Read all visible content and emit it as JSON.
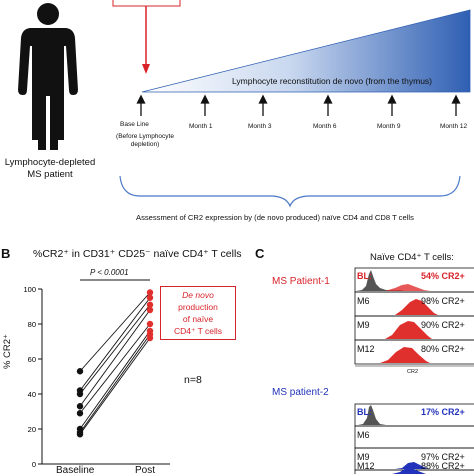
{
  "panelA": {
    "patient_label": "Lymphocyte-depleted MS patient",
    "patient_line1": "Lymphocyte-depleted",
    "patient_line2": "MS patient",
    "wedge_label": "Lymphocyte reconstitution de novo (from the thymus)",
    "timepoints": [
      {
        "label": "Base Line"
      },
      {
        "label": "Month 1"
      },
      {
        "label": "Month 3"
      },
      {
        "label": "Month 6"
      },
      {
        "label": "Month 9"
      },
      {
        "label": "Month 12"
      }
    ],
    "baseline_note_line1": "(Before Lymphocyte",
    "baseline_note_line2": "depletion)",
    "assessment": "Assessment of CR2 expression by (de novo produced) naïve CD4 and CD8 T cells",
    "colors": {
      "arrow_red": "#d8232a",
      "wedge_blue": "#2f5fb3"
    }
  },
  "panelB": {
    "letter": "B",
    "title": "%CR2⁺ in CD31⁺ CD25⁻ naïve CD4⁺ T cells",
    "pvalue": "P < 0.0001",
    "ylabel": "% CR2⁺",
    "n_label": "n=8",
    "callout_lines": [
      "De novo",
      "production",
      "of naïve",
      "CD4⁺ T cells"
    ],
    "xticks": [
      "Baseline",
      "Post"
    ],
    "yticks": [
      "0",
      "20",
      "40",
      "60",
      "80",
      "100"
    ],
    "colors": {
      "baseline_dot": "#111111",
      "post_dot": "#e0302e",
      "callout": "#d8232a"
    }
  },
  "chart_data": {
    "type": "scatter",
    "categories": [
      "Baseline",
      "Post"
    ],
    "ylim": [
      0,
      100
    ],
    "pairs": [
      {
        "baseline": 53,
        "post": 98
      },
      {
        "baseline": 42,
        "post": 95
      },
      {
        "baseline": 40,
        "post": 91
      },
      {
        "baseline": 33,
        "post": 88
      },
      {
        "baseline": 29,
        "post": 80
      },
      {
        "baseline": 20,
        "post": 76
      },
      {
        "baseline": 18,
        "post": 74
      },
      {
        "baseline": 17,
        "post": 72
      }
    ]
  },
  "panelC": {
    "letter": "C",
    "title": "Naïve CD4⁺ T cells:",
    "axis_label": "CR2",
    "patient1": {
      "name": "MS Patient-1",
      "color": "#d8232a",
      "rows": [
        {
          "tp": "BL:",
          "value": "54% CR2+"
        },
        {
          "tp": "M6",
          "value": "98% CR2+"
        },
        {
          "tp": "M9",
          "value": "90% CR2+"
        },
        {
          "tp": "M12",
          "value": "80% CR2+"
        }
      ]
    },
    "patient2": {
      "name": "MS patient-2",
      "color": "#2233bb",
      "rows": [
        {
          "tp": "BL:",
          "value": "17% CR2+"
        },
        {
          "tp": "M6",
          "value": ""
        },
        {
          "tp": "M9",
          "value": "97% CR2+"
        },
        {
          "tp": "M12",
          "value": "88% CR2+"
        }
      ]
    }
  }
}
